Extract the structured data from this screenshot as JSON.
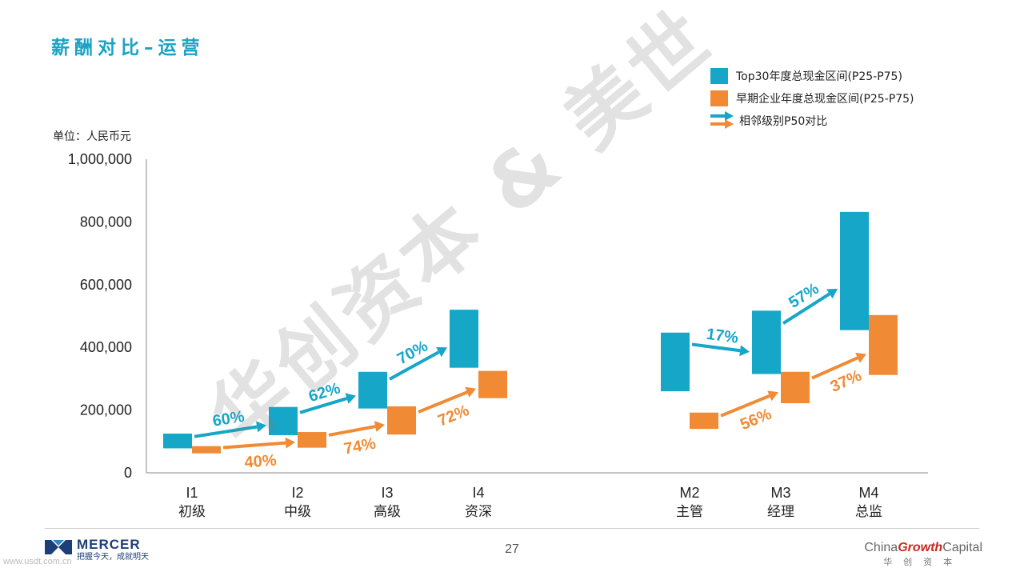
{
  "title": "薪酬对比–运营",
  "unit_label": "单位：人民币元",
  "legend": {
    "top30": "Top30年度总现金区间(P25-P75)",
    "early": "早期企业年度总现金区间(P25-P75)",
    "arrow": "相邻级别P50对比"
  },
  "colors": {
    "top30": "#16a6c8",
    "early": "#f08a34",
    "axis": "#888888",
    "title": "#1aa3c4"
  },
  "chart_data": {
    "type": "floating-bar",
    "ylim": [
      0,
      1000000
    ],
    "yticks": [
      0,
      200000,
      400000,
      600000,
      800000,
      1000000
    ],
    "ytick_labels": [
      "0",
      "200,000",
      "400,000",
      "600,000",
      "800,000",
      "1,000,000"
    ],
    "categories": [
      {
        "code": "I1",
        "name": "初级"
      },
      {
        "code": "I2",
        "name": "中级"
      },
      {
        "code": "I3",
        "name": "高级"
      },
      {
        "code": "I4",
        "name": "资深"
      },
      {
        "code": "M2",
        "name": "主管"
      },
      {
        "code": "M3",
        "name": "经理"
      },
      {
        "code": "M4",
        "name": "总监"
      }
    ],
    "series": [
      {
        "key": "top30",
        "ranges": [
          [
            78000,
            125000
          ],
          [
            120000,
            210000
          ],
          [
            205000,
            322000
          ],
          [
            335000,
            520000
          ],
          [
            260000,
            447000
          ],
          [
            315000,
            517000
          ],
          [
            455000,
            832000
          ]
        ]
      },
      {
        "key": "early",
        "ranges": [
          [
            62000,
            85000
          ],
          [
            80000,
            130000
          ],
          [
            122000,
            212000
          ],
          [
            238000,
            325000
          ],
          [
            140000,
            192000
          ],
          [
            222000,
            322000
          ],
          [
            312000,
            503000
          ]
        ]
      }
    ],
    "arrows": [
      {
        "series": "top30",
        "from": 0,
        "to": 1,
        "label": "60%"
      },
      {
        "series": "top30",
        "from": 1,
        "to": 2,
        "label": "62%"
      },
      {
        "series": "top30",
        "from": 2,
        "to": 3,
        "label": "70%"
      },
      {
        "series": "top30",
        "from": 4,
        "to": 5,
        "label": "17%"
      },
      {
        "series": "top30",
        "from": 5,
        "to": 6,
        "label": "57%"
      },
      {
        "series": "early",
        "from": 0,
        "to": 1,
        "label": "40%"
      },
      {
        "series": "early",
        "from": 1,
        "to": 2,
        "label": "74%"
      },
      {
        "series": "early",
        "from": 2,
        "to": 3,
        "label": "72%"
      },
      {
        "series": "early",
        "from": 4,
        "to": 5,
        "label": "56%"
      },
      {
        "series": "early",
        "from": 5,
        "to": 6,
        "label": "37%"
      }
    ]
  },
  "watermark": "华创资本 & 美世",
  "footer": {
    "mercer_name": "MERCER",
    "mercer_tagline": "把握今天，成就明天",
    "page_number": "27",
    "cgc_pre": "China",
    "cgc_mid": "Growth",
    "cgc_post": "Capital",
    "cgc_sub": "华创资本",
    "site": "www.usdt.com.cn"
  }
}
